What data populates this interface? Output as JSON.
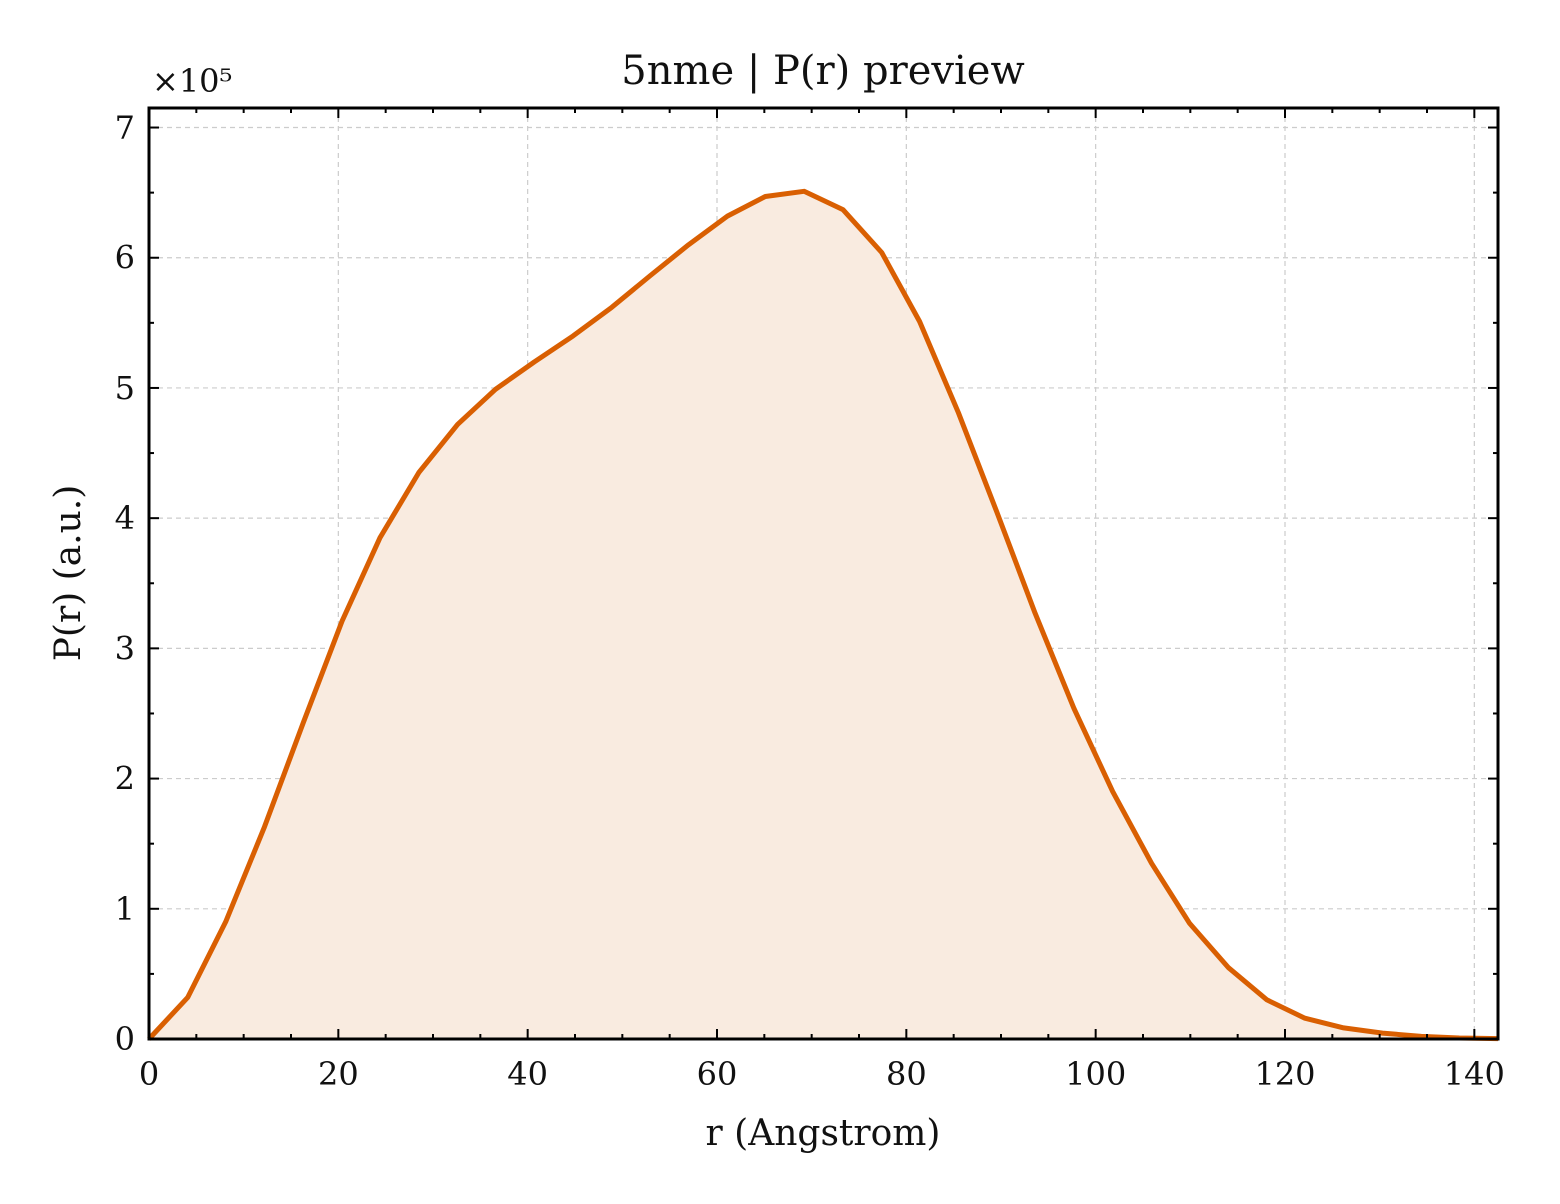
{
  "chart_data": {
    "type": "area",
    "title": "5nme | P(r) preview",
    "xlabel": "r (Angstrom)",
    "ylabel": "P(r) (a.u.)",
    "y_offset_label": "×10⁵",
    "y_multiplier": 100000,
    "xlim": [
      0,
      142.5
    ],
    "ylim": [
      0,
      715000
    ],
    "xticks": [
      0,
      20,
      40,
      60,
      80,
      100,
      120,
      140
    ],
    "yticks": [
      0,
      1,
      2,
      3,
      4,
      5,
      6,
      7
    ],
    "grid": true,
    "line_color": "#d95f02",
    "fill_color": "#f9ebe0",
    "series": [
      {
        "x": [
          0,
          4.1,
          8.1,
          12.2,
          16.3,
          20.4,
          24.4,
          28.5,
          32.6,
          36.6,
          40.7,
          44.8,
          48.9,
          52.9,
          57.0,
          61.1,
          65.1,
          69.2,
          73.3,
          77.4,
          81.4,
          85.5,
          89.6,
          93.6,
          97.7,
          101.8,
          105.9,
          109.9,
          114.0,
          118.1,
          122.1,
          126.2,
          130.3,
          134.4,
          138.4,
          142.5
        ],
        "y": [
          0,
          32000,
          90000,
          163000,
          243000,
          321000,
          385000,
          435000,
          472000,
          499000,
          520000,
          540000,
          562000,
          586000,
          610000,
          632000,
          647000,
          651000,
          637000,
          604000,
          551000,
          481000,
          404000,
          327000,
          254000,
          190000,
          135000,
          89000,
          55000,
          30000,
          16000,
          8500,
          4500,
          2000,
          800,
          300
        ]
      }
    ]
  }
}
